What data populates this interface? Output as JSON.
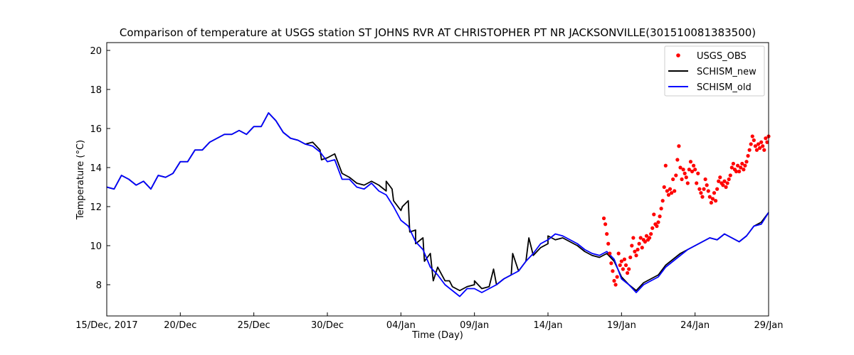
{
  "chart_data": {
    "type": "line",
    "title": "Comparison of temperature at USGS station ST JOHNS RVR AT CHRISTOPHER PT NR JACKSONVILLE(301510081383500)",
    "xlabel": "Time (Day)",
    "ylabel": "Temperature (°C)",
    "x_ticks": [
      {
        "day": 0,
        "label": "15/Dec, 2017"
      },
      {
        "day": 5,
        "label": "20/Dec"
      },
      {
        "day": 10,
        "label": "25/Dec"
      },
      {
        "day": 15,
        "label": "30/Dec"
      },
      {
        "day": 20,
        "label": "04/Jan"
      },
      {
        "day": 25,
        "label": "09/Jan"
      },
      {
        "day": 30,
        "label": "14/Jan"
      },
      {
        "day": 35,
        "label": "19/Jan"
      },
      {
        "day": 40,
        "label": "24/Jan"
      },
      {
        "day": 45,
        "label": "29/Jan"
      }
    ],
    "y_ticks": [
      8,
      10,
      12,
      14,
      16,
      18,
      20
    ],
    "xlim": [
      0,
      45
    ],
    "ylim": [
      6.4,
      20.4
    ],
    "grid": false,
    "legend_position": "top-right",
    "series": [
      {
        "name": "USGS_OBS",
        "style": "points",
        "color": "#ff0000",
        "x": [
          33.8,
          33.9,
          34.0,
          34.1,
          34.2,
          34.3,
          34.4,
          34.5,
          34.6,
          34.7,
          34.8,
          34.9,
          35.0,
          35.1,
          35.2,
          35.3,
          35.4,
          35.5,
          35.6,
          35.7,
          35.8,
          35.9,
          36.0,
          36.1,
          36.2,
          36.3,
          36.4,
          36.5,
          36.6,
          36.7,
          36.8,
          36.9,
          37.0,
          37.1,
          37.2,
          37.3,
          37.4,
          37.5,
          37.6,
          37.7,
          37.8,
          37.9,
          38.0,
          38.1,
          38.2,
          38.3,
          38.4,
          38.5,
          38.6,
          38.7,
          38.8,
          38.9,
          39.0,
          39.1,
          39.2,
          39.3,
          39.4,
          39.5,
          39.6,
          39.7,
          39.8,
          39.9,
          40.0,
          40.1,
          40.2,
          40.3,
          40.4,
          40.5,
          40.6,
          40.7,
          40.8,
          40.9,
          41.0,
          41.1,
          41.2,
          41.3,
          41.4,
          41.5,
          41.6,
          41.7,
          41.8,
          41.9,
          42.0,
          42.1,
          42.2,
          42.3,
          42.4,
          42.5,
          42.6,
          42.7,
          42.8,
          42.9,
          43.0,
          43.1,
          43.2,
          43.3,
          43.4,
          43.5,
          43.6,
          43.7,
          43.8,
          43.9,
          44.0,
          44.1,
          44.2,
          44.3,
          44.4,
          44.5,
          44.6,
          44.7,
          44.8,
          44.9,
          45.0
        ],
        "y": [
          11.4,
          11.1,
          10.6,
          10.1,
          9.6,
          9.1,
          8.7,
          8.2,
          8.0,
          8.4,
          9.6,
          9.0,
          9.2,
          8.8,
          9.3,
          9.0,
          8.6,
          8.8,
          9.4,
          10.0,
          10.4,
          9.7,
          9.5,
          9.8,
          10.1,
          10.4,
          9.9,
          10.3,
          10.2,
          10.5,
          10.3,
          10.4,
          10.6,
          10.9,
          11.6,
          11.1,
          11.0,
          11.2,
          11.5,
          11.9,
          12.3,
          13.0,
          14.1,
          12.8,
          12.6,
          12.9,
          12.7,
          13.4,
          12.8,
          13.6,
          14.4,
          15.1,
          14.0,
          13.4,
          13.9,
          13.7,
          13.5,
          13.2,
          13.9,
          14.3,
          13.8,
          14.1,
          13.9,
          13.2,
          13.7,
          12.9,
          12.7,
          12.5,
          12.9,
          13.4,
          13.1,
          12.8,
          12.5,
          12.2,
          12.4,
          12.7,
          12.3,
          12.9,
          13.3,
          13.5,
          13.2,
          13.1,
          13.3,
          13.0,
          13.2,
          13.4,
          13.6,
          14.0,
          14.2,
          13.9,
          13.8,
          14.1,
          13.8,
          14.0,
          14.2,
          13.9,
          14.1,
          14.3,
          14.6,
          14.9,
          15.2,
          15.6,
          15.4,
          15.1,
          14.9,
          15.2,
          15.0,
          15.3,
          15.1,
          14.9,
          15.5,
          15.3,
          15.6
        ]
      },
      {
        "name": "SCHISM_new",
        "style": "line",
        "color": "#000000",
        "x": [
          0,
          0.5,
          1,
          1.5,
          2,
          2.5,
          3,
          3.5,
          4,
          4.5,
          5,
          5.5,
          6,
          6.5,
          7,
          7.5,
          8,
          8.5,
          9,
          9.5,
          10,
          10.5,
          11,
          11.5,
          12,
          12.5,
          13,
          13.5,
          14,
          14.5,
          15,
          15.5,
          16,
          16.5,
          17,
          17.5,
          18,
          18.5,
          19,
          19.5,
          20,
          20.5,
          21,
          21.5,
          22,
          22.5,
          23,
          23.5,
          24,
          24.5,
          25,
          25.5,
          26,
          26.5,
          27,
          27.5,
          28,
          28.5,
          29,
          29.5,
          30,
          30.5,
          31,
          31.5,
          32,
          32.5,
          33,
          33.5,
          34,
          34.5,
          35,
          35.5,
          36,
          36.5,
          37,
          37.5,
          38,
          38.5,
          39,
          39.5,
          40,
          40.5,
          41,
          41.5,
          42,
          42.5,
          43,
          43.5,
          44,
          44.5,
          45
        ],
        "y": [
          13.0,
          12.9,
          13.6,
          13.4,
          13.1,
          13.3,
          12.9,
          13.6,
          13.5,
          13.7,
          14.3,
          14.3,
          14.9,
          14.9,
          15.3,
          15.5,
          15.7,
          15.7,
          15.9,
          15.7,
          16.1,
          16.1,
          16.8,
          16.4,
          15.8,
          15.5,
          15.4,
          15.2,
          15.3,
          14.9,
          14.5,
          14.7,
          13.7,
          13.5,
          13.2,
          13.1,
          13.3,
          13.1,
          12.8,
          12.3,
          11.8,
          12.3,
          10.8,
          10.4,
          9.6,
          8.9,
          8.2,
          7.9,
          7.7,
          7.9,
          8.0,
          7.8,
          7.9,
          8.0,
          8.3,
          8.5,
          8.7,
          9.2,
          9.5,
          9.9,
          10.1,
          10.3,
          10.4,
          10.2,
          10.0,
          9.7,
          9.5,
          9.4,
          9.6,
          9.2,
          8.4,
          8.0,
          7.7,
          8.1,
          8.3,
          8.5,
          9.0,
          9.3,
          9.6,
          9.8,
          10.0,
          10.2,
          10.4,
          10.3,
          10.6,
          10.4,
          10.2,
          10.5,
          11.0,
          11.2,
          11.7
        ],
        "y_peaks": [
          {
            "x": 14.6,
            "y": 14.4
          },
          {
            "x": 19.0,
            "y": 13.3
          },
          {
            "x": 19.4,
            "y": 12.9
          },
          {
            "x": 20.1,
            "y": 12.0
          },
          {
            "x": 20.6,
            "y": 10.7
          },
          {
            "x": 21.0,
            "y": 10.1
          },
          {
            "x": 21.6,
            "y": 9.2
          },
          {
            "x": 22.2,
            "y": 8.2
          },
          {
            "x": 23.3,
            "y": 8.2
          },
          {
            "x": 25.0,
            "y": 8.2
          },
          {
            "x": 26.3,
            "y": 8.8
          },
          {
            "x": 27.6,
            "y": 9.6
          },
          {
            "x": 28.7,
            "y": 10.4
          },
          {
            "x": 30.0,
            "y": 10.5
          }
        ]
      },
      {
        "name": "SCHISM_old",
        "style": "line",
        "color": "#0000ff",
        "x": [
          0,
          0.5,
          1,
          1.5,
          2,
          2.5,
          3,
          3.5,
          4,
          4.5,
          5,
          5.5,
          6,
          6.5,
          7,
          7.5,
          8,
          8.5,
          9,
          9.5,
          10,
          10.5,
          11,
          11.5,
          12,
          12.5,
          13,
          13.5,
          14,
          14.5,
          15,
          15.5,
          16,
          16.5,
          17,
          17.5,
          18,
          18.5,
          19,
          19.5,
          20,
          20.5,
          21,
          21.5,
          22,
          22.5,
          23,
          23.5,
          24,
          24.5,
          25,
          25.5,
          26,
          26.5,
          27,
          27.5,
          28,
          28.5,
          29,
          29.5,
          30,
          30.5,
          31,
          31.5,
          32,
          32.5,
          33,
          33.5,
          34,
          34.5,
          35,
          35.5,
          36,
          36.5,
          37,
          37.5,
          38,
          38.5,
          39,
          39.5,
          40,
          40.5,
          41,
          41.5,
          42,
          42.5,
          43,
          43.5,
          44,
          44.5,
          45
        ],
        "y": [
          13.0,
          12.9,
          13.6,
          13.4,
          13.1,
          13.3,
          12.9,
          13.6,
          13.5,
          13.7,
          14.3,
          14.3,
          14.9,
          14.9,
          15.3,
          15.5,
          15.7,
          15.7,
          15.9,
          15.7,
          16.1,
          16.1,
          16.8,
          16.4,
          15.8,
          15.5,
          15.4,
          15.2,
          15.1,
          14.8,
          14.3,
          14.4,
          13.4,
          13.4,
          13.0,
          12.9,
          13.2,
          12.8,
          12.6,
          12.0,
          11.3,
          11.0,
          10.2,
          9.8,
          8.9,
          8.5,
          8.0,
          7.7,
          7.4,
          7.8,
          7.8,
          7.6,
          7.8,
          8.0,
          8.3,
          8.5,
          8.7,
          9.2,
          9.6,
          10.1,
          10.3,
          10.6,
          10.5,
          10.3,
          10.1,
          9.8,
          9.6,
          9.5,
          9.7,
          9.3,
          8.3,
          8.0,
          7.6,
          8.0,
          8.2,
          8.4,
          8.9,
          9.2,
          9.5,
          9.8,
          10.0,
          10.2,
          10.4,
          10.3,
          10.6,
          10.4,
          10.2,
          10.5,
          11.0,
          11.1,
          11.7
        ]
      }
    ]
  }
}
